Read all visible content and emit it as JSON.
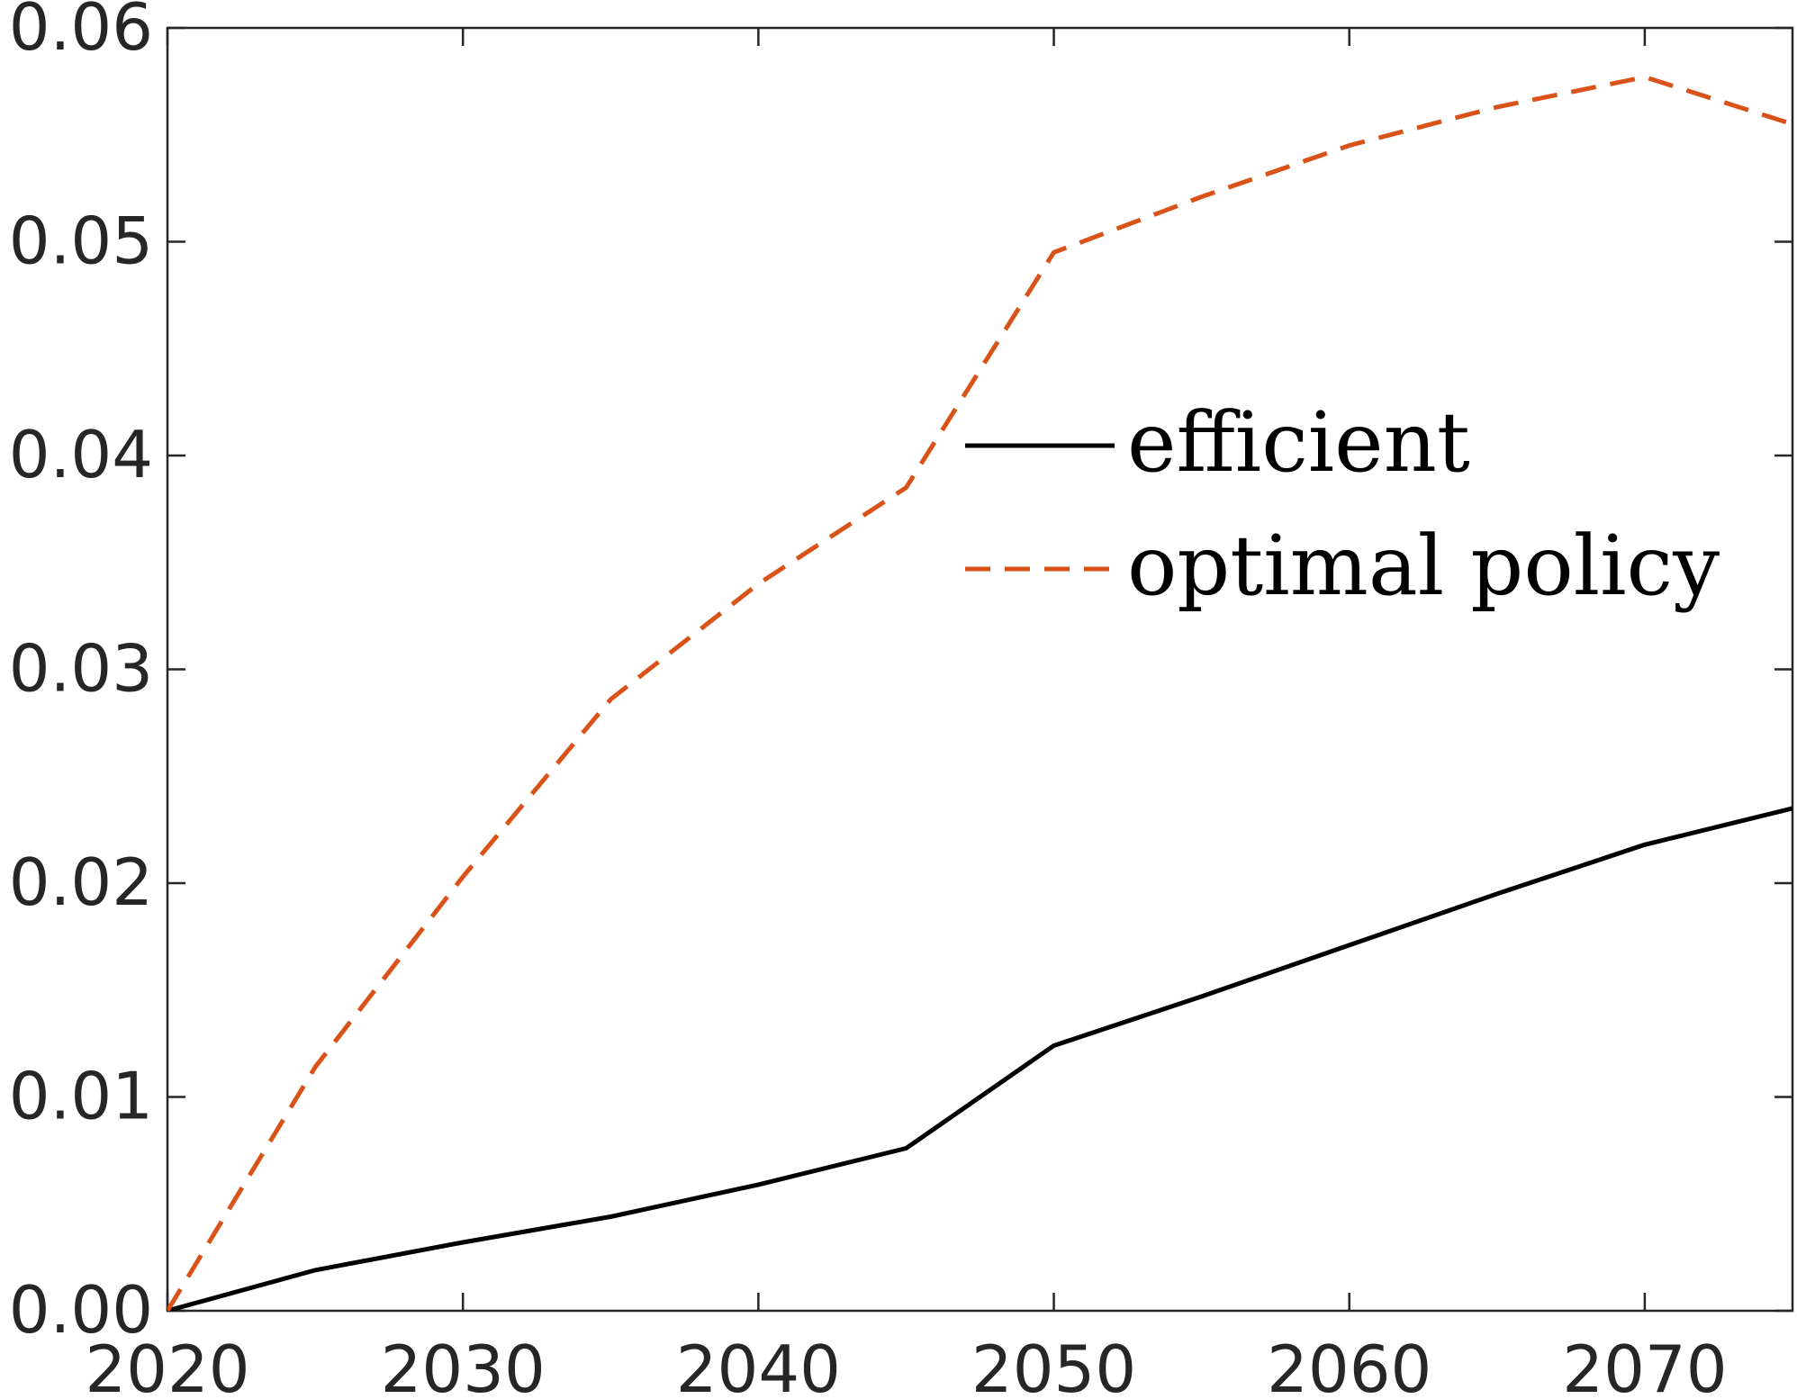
{
  "chart_data": {
    "type": "line",
    "title": "",
    "xlabel": "",
    "ylabel": "",
    "xlim": [
      2020,
      2075
    ],
    "ylim": [
      0,
      0.06
    ],
    "x_ticks": [
      2020,
      2030,
      2040,
      2050,
      2060,
      2070
    ],
    "y_ticks": [
      0.0,
      0.01,
      0.02,
      0.03,
      0.04,
      0.05,
      0.06
    ],
    "y_tick_labels": [
      "0.00",
      "0.01",
      "0.02",
      "0.03",
      "0.04",
      "0.05",
      "0.06"
    ],
    "x_tick_labels": [
      "2020",
      "2030",
      "2040",
      "2050",
      "2060",
      "2070"
    ],
    "grid": false,
    "legend_position": "center-right",
    "x": [
      2020,
      2025,
      2030,
      2035,
      2040,
      2045,
      2050,
      2055,
      2060,
      2065,
      2070,
      2075
    ],
    "series": [
      {
        "name": "efficient",
        "color": "#000000",
        "style": "solid",
        "values": [
          0.0,
          0.0019,
          0.0032,
          0.0044,
          0.0059,
          0.0076,
          0.0124,
          0.0147,
          0.0171,
          0.0195,
          0.0218,
          0.0235
        ]
      },
      {
        "name": "optimal policy",
        "color": "#D95319",
        "style": "dashed",
        "values": [
          0.0,
          0.0114,
          0.0203,
          0.0286,
          0.034,
          0.0385,
          0.0495,
          0.0521,
          0.0545,
          0.0563,
          0.0577,
          0.0555
        ]
      }
    ]
  }
}
